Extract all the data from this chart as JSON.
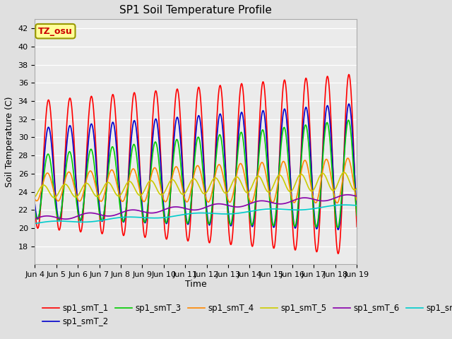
{
  "title": "SP1 Soil Temperature Profile",
  "xlabel": "Time",
  "ylabel": "Soil Temperature (C)",
  "ylim": [
    16,
    43
  ],
  "yticks": [
    18,
    20,
    22,
    24,
    26,
    28,
    30,
    32,
    34,
    36,
    38,
    40,
    42
  ],
  "fig_bg_color": "#e0e0e0",
  "plot_bg_color": "#ebebeb",
  "grid_color": "#ffffff",
  "series_colors": {
    "sp1_smT_1": "#ff0000",
    "sp1_smT_2": "#0000cc",
    "sp1_smT_3": "#00cc00",
    "sp1_smT_4": "#ff8800",
    "sp1_smT_5": "#cccc00",
    "sp1_smT_6": "#8800aa",
    "sp1_smT_7": "#00cccc"
  },
  "tz_label": "TZ_osu",
  "tz_bg": "#ffff99",
  "tz_border": "#999900",
  "tz_text_color": "#cc0000",
  "n_days": 15,
  "start_day": 4
}
